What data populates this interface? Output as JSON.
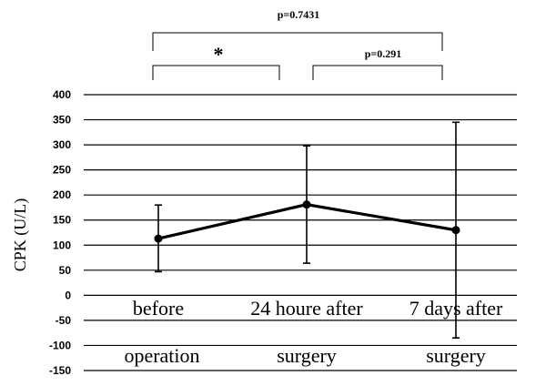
{
  "chart_data": {
    "type": "line",
    "ylabel": "CPK (U/L)",
    "ylim": [
      -150,
      400
    ],
    "ytick_step": 50,
    "ytick_labels": [
      "400",
      "350",
      "300",
      "250",
      "200",
      "150",
      "100",
      "50",
      "0",
      "-50",
      "-100",
      "-150"
    ],
    "grid": true,
    "categories": [
      "before",
      "24 houre after",
      "7 days after"
    ],
    "category_sublabels": [
      "operation",
      "surgery",
      "surgery"
    ],
    "series": [
      {
        "values": [
          113,
          181,
          130
        ],
        "error_low": [
          47,
          64,
          -85
        ],
        "error_high": [
          180,
          298,
          345
        ]
      }
    ],
    "annotations": {
      "outer_bracket": {
        "from": 0,
        "to": 2,
        "label": "p=0.7431"
      },
      "left_bracket": {
        "from": 0,
        "to": 1,
        "label": "*"
      },
      "right_bracket": {
        "from": 1,
        "to": 2,
        "label": "p=0.291"
      }
    }
  }
}
